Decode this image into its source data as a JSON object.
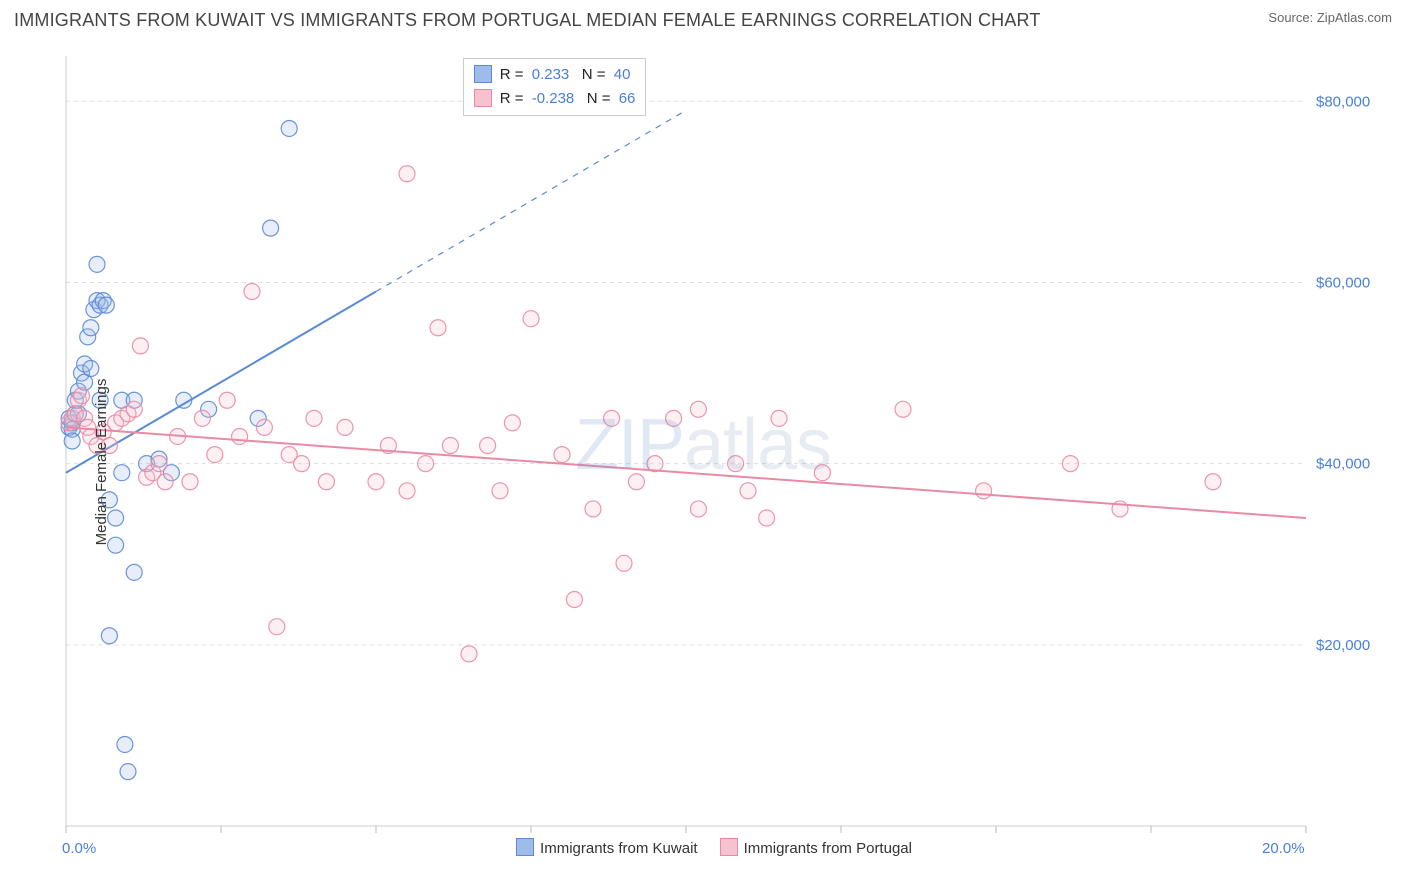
{
  "title": "IMMIGRANTS FROM KUWAIT VS IMMIGRANTS FROM PORTUGAL MEDIAN FEMALE EARNINGS CORRELATION CHART",
  "source_label": "Source:",
  "source_value": "ZipAtlas.com",
  "ylabel": "Median Female Earnings",
  "watermark": "ZIPatlas",
  "xaxis": {
    "min": 0.0,
    "max": 20.0,
    "start_label": "0.0%",
    "end_label": "20.0%",
    "tick_step": 2.5,
    "tick_color": "#bbbbbb"
  },
  "yaxis": {
    "min": 0,
    "max": 85000,
    "ticks": [
      20000,
      40000,
      60000,
      80000
    ],
    "tick_labels": [
      "$20,000",
      "$40,000",
      "$60,000",
      "$80,000"
    ],
    "grid_color": "#dddddd",
    "label_color": "#4a7fd8"
  },
  "plot": {
    "background": "#ffffff",
    "border_color": "#cccccc",
    "marker_radius": 8,
    "marker_fill_opacity": 0.25,
    "marker_stroke_opacity": 0.9,
    "line_width": 2
  },
  "series": [
    {
      "key": "kuwait",
      "label": "Immigrants from Kuwait",
      "color_stroke": "#5b8ad6",
      "color_fill": "#9fbce8",
      "r_label": "R =",
      "r_value": "0.233",
      "n_label": "N =",
      "n_value": "40",
      "trend": {
        "x1": 0.0,
        "y1": 39000,
        "x2": 5.0,
        "y2": 59000,
        "dash_x2": 10.0,
        "dash_y2": 79000
      },
      "points": [
        [
          0.05,
          44000
        ],
        [
          0.05,
          45000
        ],
        [
          0.1,
          44500
        ],
        [
          0.1,
          43800
        ],
        [
          0.1,
          42500
        ],
        [
          0.15,
          45500
        ],
        [
          0.15,
          47000
        ],
        [
          0.2,
          48000
        ],
        [
          0.2,
          45500
        ],
        [
          0.25,
          50000
        ],
        [
          0.3,
          51000
        ],
        [
          0.3,
          49000
        ],
        [
          0.35,
          54000
        ],
        [
          0.4,
          55000
        ],
        [
          0.4,
          50500
        ],
        [
          0.45,
          57000
        ],
        [
          0.5,
          62000
        ],
        [
          0.5,
          58000
        ],
        [
          0.55,
          57500
        ],
        [
          0.55,
          47000
        ],
        [
          0.6,
          58000
        ],
        [
          0.65,
          57500
        ],
        [
          0.7,
          36000
        ],
        [
          0.7,
          21000
        ],
        [
          0.8,
          34000
        ],
        [
          0.8,
          31000
        ],
        [
          0.9,
          47000
        ],
        [
          0.9,
          39000
        ],
        [
          0.95,
          9000
        ],
        [
          1.0,
          6000
        ],
        [
          1.1,
          47000
        ],
        [
          1.1,
          28000
        ],
        [
          1.3,
          40000
        ],
        [
          1.5,
          40500
        ],
        [
          1.7,
          39000
        ],
        [
          1.9,
          47000
        ],
        [
          2.3,
          46000
        ],
        [
          3.3,
          66000
        ],
        [
          3.6,
          77000
        ],
        [
          3.1,
          45000
        ]
      ]
    },
    {
      "key": "portugal",
      "label": "Immigrants from Portugal",
      "color_stroke": "#e98aa5",
      "color_fill": "#f6c2d0",
      "r_label": "R =",
      "r_value": "-0.238",
      "n_label": "N =",
      "n_value": "66",
      "trend": {
        "x1": 0.0,
        "y1": 44000,
        "x2": 20.0,
        "y2": 34000
      },
      "points": [
        [
          0.05,
          44500
        ],
        [
          0.1,
          45000
        ],
        [
          0.15,
          45500
        ],
        [
          0.2,
          47000
        ],
        [
          0.25,
          47500
        ],
        [
          0.3,
          45000
        ],
        [
          0.35,
          44000
        ],
        [
          0.4,
          43000
        ],
        [
          0.5,
          42000
        ],
        [
          0.6,
          43500
        ],
        [
          0.7,
          42000
        ],
        [
          0.8,
          44500
        ],
        [
          0.9,
          45000
        ],
        [
          1.0,
          45500
        ],
        [
          1.1,
          46000
        ],
        [
          1.2,
          53000
        ],
        [
          1.3,
          38500
        ],
        [
          1.4,
          39000
        ],
        [
          1.5,
          40000
        ],
        [
          1.6,
          38000
        ],
        [
          1.8,
          43000
        ],
        [
          2.0,
          38000
        ],
        [
          2.2,
          45000
        ],
        [
          2.4,
          41000
        ],
        [
          2.6,
          47000
        ],
        [
          2.8,
          43000
        ],
        [
          3.0,
          59000
        ],
        [
          3.2,
          44000
        ],
        [
          3.4,
          22000
        ],
        [
          3.6,
          41000
        ],
        [
          3.8,
          40000
        ],
        [
          4.0,
          45000
        ],
        [
          4.2,
          38000
        ],
        [
          4.5,
          44000
        ],
        [
          5.0,
          38000
        ],
        [
          5.2,
          42000
        ],
        [
          5.5,
          37000
        ],
        [
          5.5,
          72000
        ],
        [
          5.8,
          40000
        ],
        [
          6.0,
          55000
        ],
        [
          6.2,
          42000
        ],
        [
          6.5,
          19000
        ],
        [
          6.8,
          42000
        ],
        [
          7.0,
          37000
        ],
        [
          7.2,
          44500
        ],
        [
          7.5,
          56000
        ],
        [
          8.0,
          41000
        ],
        [
          8.2,
          25000
        ],
        [
          8.5,
          35000
        ],
        [
          8.8,
          45000
        ],
        [
          9.0,
          29000
        ],
        [
          9.2,
          38000
        ],
        [
          9.5,
          40000
        ],
        [
          9.8,
          45000
        ],
        [
          10.2,
          46000
        ],
        [
          10.2,
          35000
        ],
        [
          10.8,
          40000
        ],
        [
          11.0,
          37000
        ],
        [
          11.3,
          34000
        ],
        [
          11.5,
          45000
        ],
        [
          12.2,
          39000
        ],
        [
          13.5,
          46000
        ],
        [
          14.8,
          37000
        ],
        [
          16.2,
          40000
        ],
        [
          17.0,
          35000
        ],
        [
          18.5,
          38000
        ]
      ]
    }
  ],
  "legend_series_order": [
    "kuwait",
    "portugal"
  ]
}
